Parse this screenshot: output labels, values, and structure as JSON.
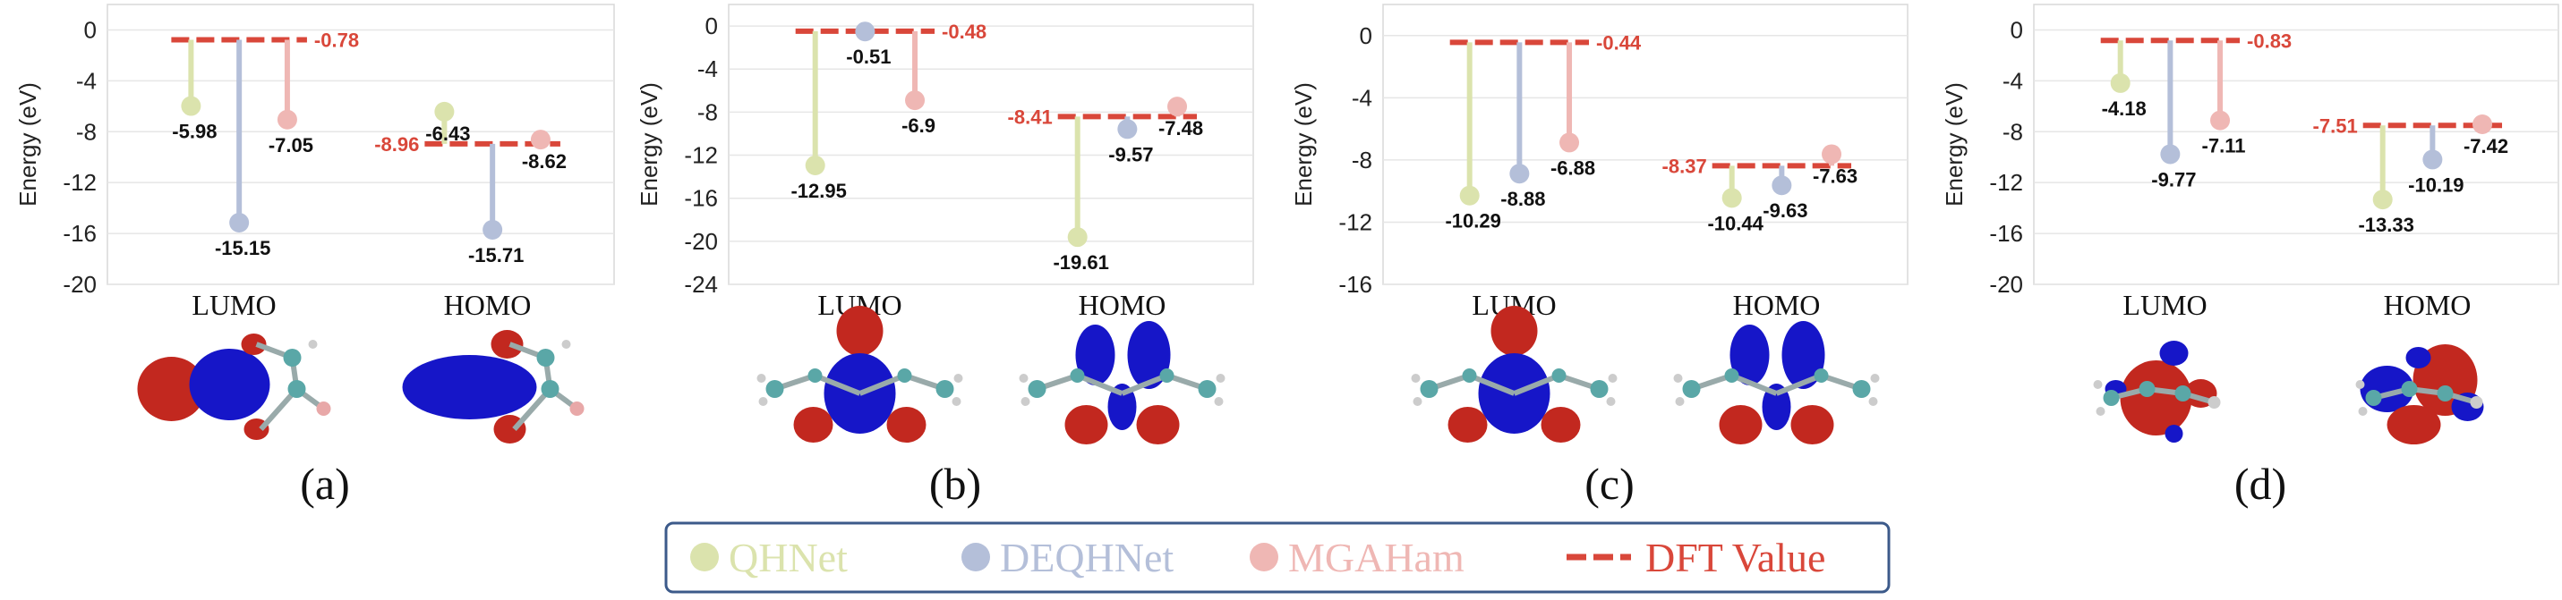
{
  "colors": {
    "QHNet": "#dbe3ad",
    "DEQHNet": "#b4bfd9",
    "MGAHam": "#efb7b4",
    "DFT": "#d9473a"
  },
  "legend": [
    {
      "name": "QHNet",
      "style": "dot"
    },
    {
      "name": "DEQHNet",
      "style": "dot"
    },
    {
      "name": "MGAHam",
      "style": "dot"
    },
    {
      "name": "DFT Value",
      "style": "dash"
    }
  ],
  "chart_data": [
    {
      "type": "lollipop",
      "panel": "(a)",
      "ylabel": "Energy (eV)",
      "ylim": [
        -20,
        2
      ],
      "yticks": [
        0,
        -4,
        -8,
        -12,
        -16,
        -20
      ],
      "categories": [
        "LUMO",
        "HOMO"
      ],
      "dft": [
        -0.78,
        -8.96
      ],
      "series": [
        {
          "name": "QHNet",
          "values": [
            -5.98,
            -6.43
          ]
        },
        {
          "name": "DEQHNet",
          "values": [
            -15.15,
            -15.71
          ]
        },
        {
          "name": "MGAHam",
          "values": [
            -7.05,
            -8.62
          ]
        }
      ]
    },
    {
      "type": "lollipop",
      "panel": "(b)",
      "ylabel": "Energy (eV)",
      "ylim": [
        -24,
        2
      ],
      "yticks": [
        0,
        -4,
        -8,
        -12,
        -16,
        -20,
        -24
      ],
      "categories": [
        "LUMO",
        "HOMO"
      ],
      "dft": [
        -0.48,
        -8.41
      ],
      "series": [
        {
          "name": "QHNet",
          "values": [
            -12.95,
            -19.61
          ]
        },
        {
          "name": "DEQHNet",
          "values": [
            -0.51,
            -9.57
          ]
        },
        {
          "name": "MGAHam",
          "values": [
            -6.9,
            -7.48
          ]
        }
      ]
    },
    {
      "type": "lollipop",
      "panel": "(c)",
      "ylabel": "Energy (eV)",
      "ylim": [
        -16,
        2
      ],
      "yticks": [
        0,
        -4,
        -8,
        -12,
        -16
      ],
      "categories": [
        "LUMO",
        "HOMO"
      ],
      "dft": [
        -0.44,
        -8.37
      ],
      "series": [
        {
          "name": "QHNet",
          "values": [
            -10.29,
            -10.44
          ]
        },
        {
          "name": "DEQHNet",
          "values": [
            -8.88,
            -9.63
          ]
        },
        {
          "name": "MGAHam",
          "values": [
            -6.88,
            -7.63
          ]
        }
      ]
    },
    {
      "type": "lollipop",
      "panel": "(d)",
      "ylabel": "Energy (eV)",
      "ylim": [
        -20,
        2
      ],
      "yticks": [
        0,
        -4,
        -8,
        -12,
        -16,
        -20
      ],
      "categories": [
        "LUMO",
        "HOMO"
      ],
      "dft": [
        -0.83,
        -7.51
      ],
      "series": [
        {
          "name": "QHNet",
          "values": [
            -4.18,
            -13.33
          ]
        },
        {
          "name": "DEQHNet",
          "values": [
            -9.77,
            -10.19
          ]
        },
        {
          "name": "MGAHam",
          "values": [
            -7.11,
            -7.42
          ]
        }
      ]
    }
  ]
}
